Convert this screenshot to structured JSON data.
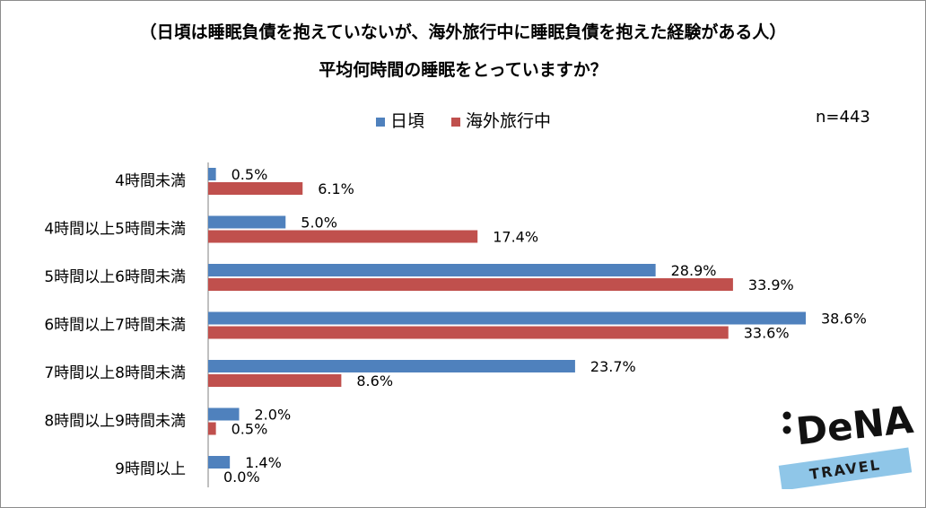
{
  "chart_data": {
    "type": "bar",
    "orientation": "horizontal",
    "title": "（日頃は睡眠負債を抱えていないが、海外旅行中に睡眠負債を抱えた経験がある人）",
    "subtitle": "平均何時間の睡眠をとっていますか？",
    "note": "n=443",
    "categories": [
      "4時間未満",
      "4時間以上5時間未満",
      "5時間以上6時間未満",
      "6時間以上7時間未満",
      "7時間以上8時間未満",
      "8時間以上9時間未満",
      "9時間以上"
    ],
    "series": [
      {
        "name": "日頃",
        "color": "#4f81bd",
        "values": [
          0.5,
          5.0,
          28.9,
          38.6,
          23.7,
          2.0,
          1.4
        ],
        "labels": [
          "0.5%",
          "5.0%",
          "28.9%",
          "38.6%",
          "23.7%",
          "2.0%",
          "1.4%"
        ]
      },
      {
        "name": "海外旅行中",
        "color": "#c0504d",
        "values": [
          6.1,
          17.4,
          33.9,
          33.6,
          8.6,
          0.5,
          0.0
        ],
        "labels": [
          "6.1%",
          "17.4%",
          "33.9%",
          "33.6%",
          "8.6%",
          "0.5%",
          "0.0%"
        ]
      }
    ],
    "xlim": [
      0,
      40
    ],
    "legend_position": "top",
    "grid": false
  },
  "logo": {
    "brand": "DeNA",
    "tag": "TRAVEL"
  }
}
